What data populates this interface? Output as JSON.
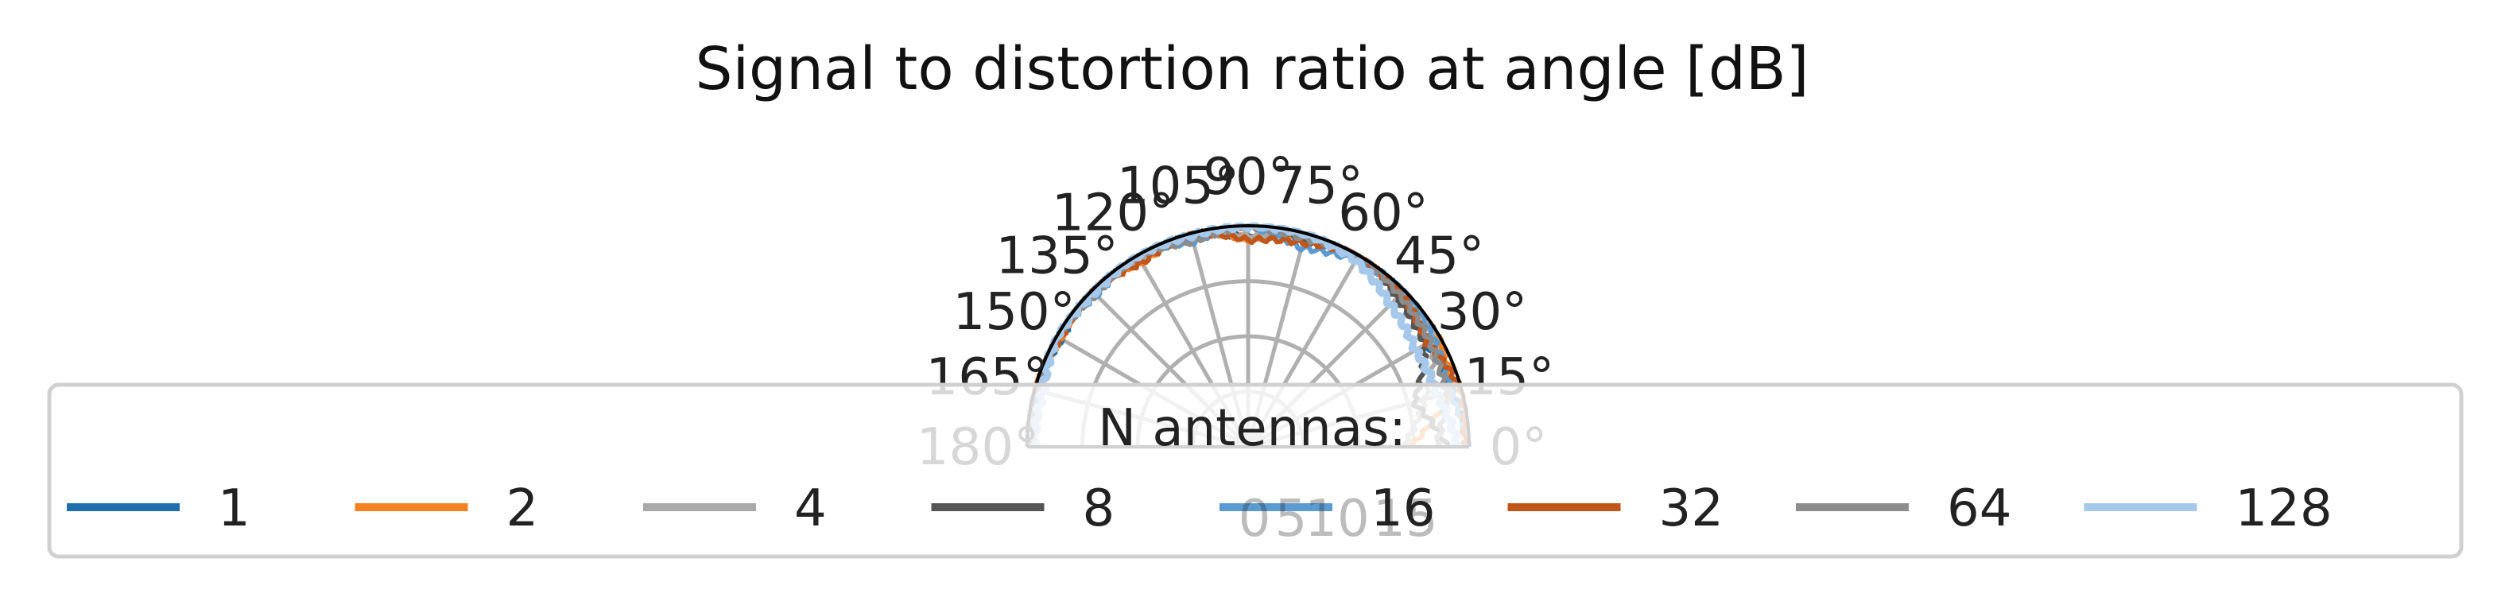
{
  "chart_data": {
    "type": "line",
    "projection": "polar-half",
    "title": "Signal to distortion ratio at angle [dB]",
    "theta_ticks": [
      "0°",
      "15°",
      "30°",
      "45°",
      "60°",
      "75°",
      "90°",
      "105°",
      "120°",
      "135°",
      "150°",
      "165°",
      "180°"
    ],
    "theta_range": [
      0,
      180
    ],
    "r_ticks": [
      "0",
      "5",
      "10",
      "15"
    ],
    "r_range": [
      0,
      20
    ],
    "grid": true,
    "legend": {
      "title": "N antennas:",
      "placement": "bottom",
      "columns": 8
    },
    "series": [
      {
        "name": "1",
        "color": "#1f6fae",
        "values": [
          20,
          19.2,
          18.6,
          19.8,
          20,
          19.6,
          18.9,
          20,
          19.7,
          20,
          19.5,
          20,
          19.9
        ]
      },
      {
        "name": "2",
        "color": "#f58220",
        "values": [
          14.5,
          19.0,
          20,
          19.4,
          20,
          19.7,
          18.8,
          20,
          19.3,
          20,
          19.6,
          20,
          19.8
        ]
      },
      {
        "name": "4",
        "color": "#a9a9a9",
        "values": [
          14.0,
          16.5,
          19.5,
          20,
          19.6,
          20,
          19.0,
          20,
          19.5,
          20,
          19.7,
          20,
          19.6
        ]
      },
      {
        "name": "8",
        "color": "#555555",
        "values": [
          18.0,
          15.5,
          18.5,
          19.0,
          20,
          19.3,
          20,
          19.4,
          20,
          19.6,
          20,
          19.7,
          20
        ]
      },
      {
        "name": "16",
        "color": "#5c9bd1",
        "values": [
          20,
          18.9,
          19.4,
          20,
          19.5,
          18.6,
          20,
          19.2,
          20,
          19.4,
          20,
          19.5,
          20
        ]
      },
      {
        "name": "32",
        "color": "#c1561a",
        "values": [
          19.5,
          20,
          18.7,
          19.6,
          20,
          19.1,
          18.7,
          20,
          19.2,
          20,
          19.6,
          20,
          19.7
        ]
      },
      {
        "name": "64",
        "color": "#8c8c8c",
        "values": [
          17.0,
          18.5,
          19.0,
          19.4,
          20,
          19.5,
          20,
          19.2,
          20,
          19.5,
          20,
          19.6,
          20
        ]
      },
      {
        "name": "128",
        "color": "#a6c8ea",
        "values": [
          19.0,
          17.8,
          17.5,
          18.2,
          19.5,
          20,
          20,
          19.8,
          20,
          19.7,
          20,
          19.2,
          19.4
        ]
      }
    ]
  }
}
